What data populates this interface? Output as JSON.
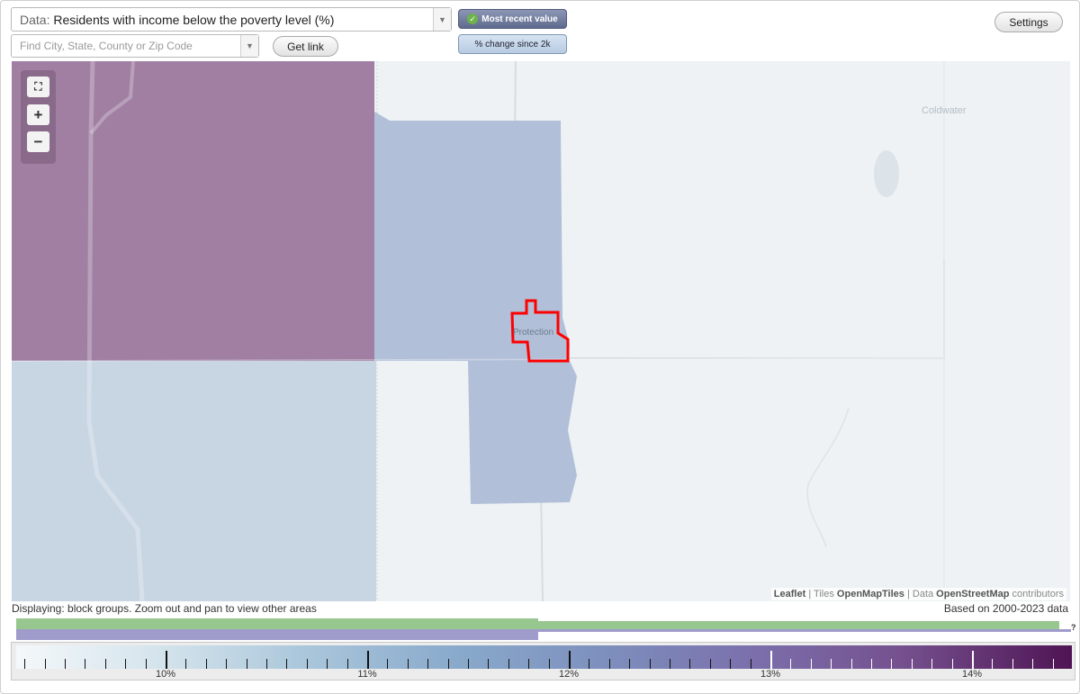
{
  "toolbar": {
    "data_prefix": "Data: ",
    "data_value": "Residents with income below the poverty level (%)",
    "search_placeholder": "Find City, State, County or Zip Code",
    "get_link_label": "Get link",
    "settings_label": "Settings",
    "toggle_recent_label": "Most recent value",
    "toggle_change_label": "% change since 2k",
    "zoom_in_label": "+",
    "zoom_out_label": "−"
  },
  "map": {
    "place_label": "Protection",
    "town_label": "Coldwater",
    "attribution": {
      "leaflet": "Leaflet",
      "sep1": " | Tiles ",
      "tiles": "OpenMapTiles",
      "sep2": " | Data ",
      "data": "OpenStreetMap",
      "suffix": " contributors"
    },
    "colors": {
      "region_purple": "#a07fa3",
      "region_blue": "#b1bfd8",
      "region_light": "#c8d6e4",
      "highlight_border": "#ff0000"
    }
  },
  "info": {
    "displaying_text": "Displaying: block groups. Zoom out and pan to view other areas",
    "based_on_text": "Based on 2000-2023 data"
  },
  "legend": {
    "labels": [
      "10%",
      "11%",
      "12%",
      "13%",
      "14%"
    ]
  }
}
